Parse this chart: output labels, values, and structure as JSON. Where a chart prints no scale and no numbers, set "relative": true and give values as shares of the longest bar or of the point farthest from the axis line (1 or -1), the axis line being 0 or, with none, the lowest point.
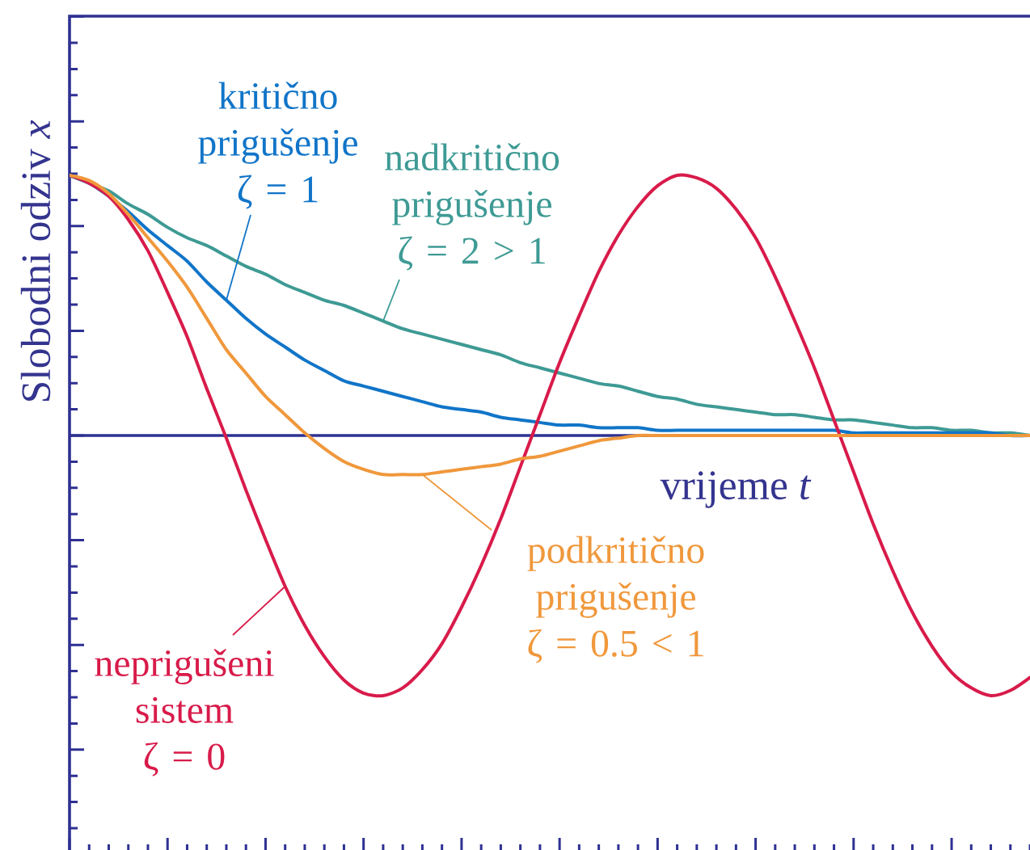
{
  "chart_data": {
    "type": "line",
    "relative": true,
    "xlabel": "vrijeme *t*",
    "ylabel": "Slobodni odziv *x*",
    "marker": "none",
    "line_style": "solid",
    "ref_lines": [
      {
        "axis": "y",
        "value": 0,
        "color": "#2e3192"
      }
    ],
    "categories": [
      null,
      null,
      null,
      null,
      null,
      null,
      null,
      null,
      null,
      null,
      null,
      null,
      null,
      null,
      null,
      null,
      null,
      null,
      null,
      null,
      null,
      null,
      null,
      null,
      null,
      null,
      null,
      null,
      null,
      null,
      null,
      null,
      null,
      null,
      null,
      null,
      null,
      null,
      null,
      null,
      null,
      null,
      null,
      null,
      null,
      null,
      null,
      null,
      null,
      null
    ],
    "series": [
      {
        "name": "nadkritično prigušenje ζ = 2 > 1",
        "color": "#3e9a94",
        "values": [
          1.0,
          0.97,
          0.94,
          0.89,
          0.85,
          0.8,
          0.76,
          0.73,
          0.69,
          0.65,
          0.62,
          0.58,
          0.55,
          0.52,
          0.5,
          0.47,
          0.44,
          0.41,
          0.39,
          0.37,
          0.35,
          0.33,
          0.31,
          0.28,
          0.26,
          0.24,
          0.22,
          0.2,
          0.19,
          0.17,
          0.15,
          0.14,
          0.12,
          0.11,
          0.1,
          0.09,
          0.08,
          0.08,
          0.07,
          0.06,
          0.06,
          0.05,
          0.04,
          0.03,
          0.03,
          0.02,
          0.02,
          0.01,
          0.01,
          0.0
        ]
      },
      {
        "name": "kritično prigušenje ζ = 1",
        "color": "#1175c8",
        "values": [
          1.0,
          0.97,
          0.92,
          0.86,
          0.79,
          0.73,
          0.67,
          0.59,
          0.52,
          0.45,
          0.39,
          0.34,
          0.29,
          0.25,
          0.21,
          0.19,
          0.17,
          0.15,
          0.13,
          0.11,
          0.1,
          0.09,
          0.07,
          0.06,
          0.05,
          0.04,
          0.04,
          0.03,
          0.03,
          0.03,
          0.02,
          0.02,
          0.02,
          0.02,
          0.02,
          0.02,
          0.02,
          0.02,
          0.02,
          0.02,
          0.01,
          0.01,
          0.01,
          0.01,
          0.01,
          0.01,
          0.01,
          0.01,
          0.0,
          0.0
        ]
      },
      {
        "name": "neprigušeni sistem ζ = 0",
        "color": "#d81b4a",
        "values": [
          1.0,
          0.97,
          0.92,
          0.83,
          0.71,
          0.55,
          0.38,
          0.18,
          -0.01,
          -0.21,
          -0.4,
          -0.58,
          -0.73,
          -0.85,
          -0.94,
          -0.99,
          -1.0,
          -0.97,
          -0.9,
          -0.8,
          -0.66,
          -0.5,
          -0.32,
          -0.12,
          0.08,
          0.28,
          0.46,
          0.63,
          0.77,
          0.88,
          0.96,
          1.0,
          0.99,
          0.95,
          0.87,
          0.76,
          0.61,
          0.44,
          0.26,
          0.06,
          -0.14,
          -0.34,
          -0.52,
          -0.68,
          -0.81,
          -0.91,
          -0.97,
          -1.0,
          -0.98,
          -0.93
        ]
      },
      {
        "name": "podkritično prigušenje ζ = 0.5 < 1",
        "color": "#f0983c",
        "values": [
          1.0,
          0.98,
          0.93,
          0.85,
          0.76,
          0.67,
          0.57,
          0.45,
          0.33,
          0.24,
          0.15,
          0.08,
          0.01,
          -0.05,
          -0.1,
          -0.13,
          -0.15,
          -0.15,
          -0.15,
          -0.14,
          -0.13,
          -0.12,
          -0.11,
          -0.09,
          -0.08,
          -0.06,
          -0.04,
          -0.02,
          -0.01,
          0.0,
          0.0,
          0.0,
          0.0,
          0.0,
          0.0,
          0.0,
          0.0,
          0.0,
          0.0,
          0.0,
          0.0,
          0.0,
          0.0,
          0.0,
          0.0,
          0.0,
          0.0,
          0.0,
          0.0,
          0.0
        ]
      }
    ]
  }
}
